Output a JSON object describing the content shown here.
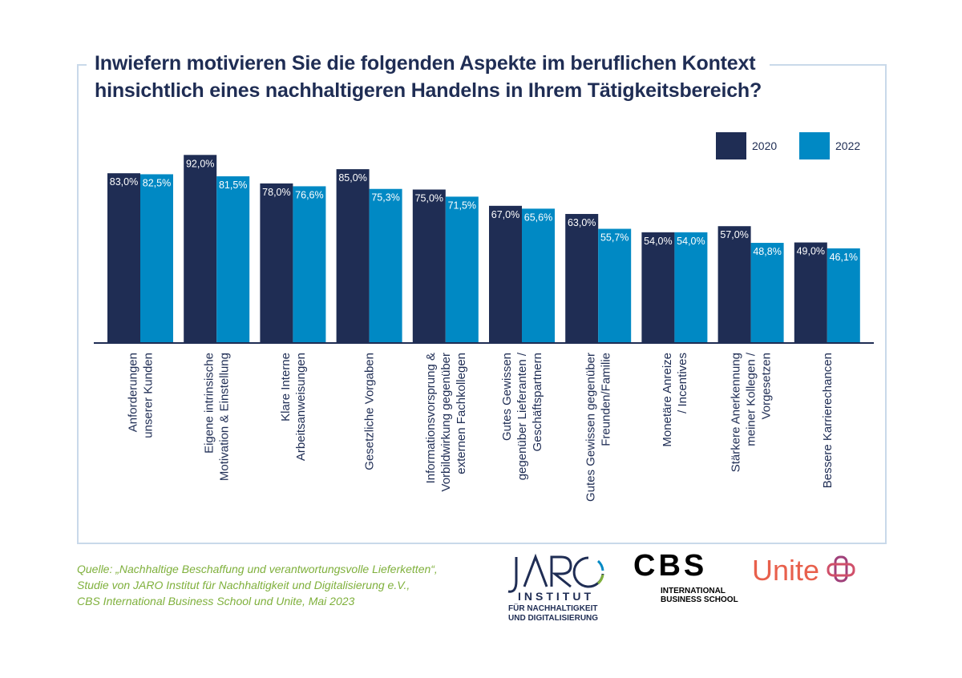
{
  "chart_data": {
    "type": "bar",
    "title": [
      "Inwiefern motivieren Sie die folgenden Aspekte im beruflichen Kontext",
      "hinsichtlich eines nachhaltigeren Handelns in Ihrem Tätigkeitsbereich?"
    ],
    "xlabel": "",
    "ylabel": "",
    "ylim": [
      0,
      100
    ],
    "grid": false,
    "legend_position": "top-right",
    "categories": [
      [
        "Anforderungen",
        "unserer Kunden"
      ],
      [
        "Eigene intrinsische",
        "Motivation & Einstellung"
      ],
      [
        "Klare Interne",
        "Arbeitsanweisungen"
      ],
      [
        "Gesetzliche Vorgaben"
      ],
      [
        "Informationsvorsprung &",
        "Vorbildwirkung gegenüber",
        "externen Fachkollegen"
      ],
      [
        "Gutes Gewissen",
        "gegenüber Lieferanten /",
        "Geschäftspartnern"
      ],
      [
        "Gutes Gewissen gegenüber",
        "Freunden/Familie"
      ],
      [
        "Monetäre Anreize",
        "/ Incentives"
      ],
      [
        "Stärkere Anerkennung",
        "meiner Kollegen /",
        "Vorgesetzen"
      ],
      [
        "Bessere Karrierechancen"
      ]
    ],
    "series": [
      {
        "name": "2020",
        "color": "#1f2d54",
        "values": [
          83.0,
          92.0,
          78.0,
          85.0,
          75.0,
          67.0,
          63.0,
          54.0,
          57.0,
          49.0
        ],
        "labels": [
          "83,0%",
          "92,0%",
          "78,0%",
          "85,0%",
          "75,0%",
          "67,0%",
          "63,0%",
          "54,0%",
          "57,0%",
          "49,0%"
        ]
      },
      {
        "name": "2022",
        "color": "#0089c4",
        "values": [
          82.5,
          81.5,
          76.6,
          75.3,
          71.5,
          65.6,
          55.7,
          54.0,
          48.8,
          46.1
        ],
        "labels": [
          "82,5%",
          "81,5%",
          "76,6%",
          "75,3%",
          "71,5%",
          "65,6%",
          "55,7%",
          "54,0%",
          "48,8%",
          "46,1%"
        ]
      }
    ]
  },
  "source": {
    "lines": [
      "Quelle: „Nachhaltige Beschaffung und verantwortungsvolle Lieferketten“,",
      "Studie von JARO Institut für Nachhaltigkeit und Digitalisierung e.V.,",
      "CBS International Business School und Unite, Mai 2023"
    ]
  },
  "logos": {
    "jaro": {
      "name": "JARO",
      "line1": "INSTITUT",
      "line2": "FÜR NACHHALTIGKEIT",
      "line3": "UND DIGITALISIERUNG"
    },
    "cbs": {
      "name": "CBS",
      "line1": "INTERNATIONAL",
      "line2": "BUSINESS SCHOOL"
    },
    "unite": {
      "name": "Unite"
    }
  },
  "colors": {
    "frame": "#c9d9ea",
    "source_text": "#7fb03c",
    "unite": "#e8604c",
    "unite_icon": "#a0407a"
  }
}
